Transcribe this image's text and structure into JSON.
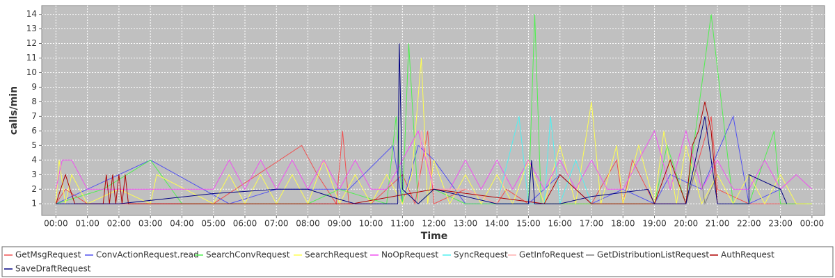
{
  "chart_data": {
    "type": "line",
    "x_label": "Time",
    "y_label": "calls/min",
    "xlim": [
      -0.45,
      24.4
    ],
    "ylim": [
      0.2,
      14.6
    ],
    "xticks": [
      {
        "value": 0,
        "label": "00:00"
      },
      {
        "value": 1,
        "label": "01:00"
      },
      {
        "value": 2,
        "label": "02:00"
      },
      {
        "value": 3,
        "label": "03:00"
      },
      {
        "value": 4,
        "label": "04:00"
      },
      {
        "value": 5,
        "label": "05:00"
      },
      {
        "value": 6,
        "label": "06:00"
      },
      {
        "value": 7,
        "label": "07:00"
      },
      {
        "value": 8,
        "label": "08:00"
      },
      {
        "value": 9,
        "label": "09:00"
      },
      {
        "value": 10,
        "label": "10:00"
      },
      {
        "value": 11,
        "label": "11:00"
      },
      {
        "value": 12,
        "label": "12:00"
      },
      {
        "value": 13,
        "label": "13:00"
      },
      {
        "value": 14,
        "label": "14:00"
      },
      {
        "value": 15,
        "label": "15:00"
      },
      {
        "value": 16,
        "label": "16:00"
      },
      {
        "value": 17,
        "label": "17:00"
      },
      {
        "value": 18,
        "label": "18:00"
      },
      {
        "value": 19,
        "label": "19:00"
      },
      {
        "value": 20,
        "label": "20:00"
      },
      {
        "value": 21,
        "label": "21:00"
      },
      {
        "value": 22,
        "label": "22:00"
      },
      {
        "value": 23,
        "label": "23:00"
      },
      {
        "value": 24,
        "label": "00:00"
      }
    ],
    "yticks": [
      1,
      2,
      3,
      4,
      5,
      6,
      7,
      8,
      9,
      10,
      11,
      12,
      13,
      14
    ],
    "grid": true,
    "legend": "bottom",
    "series": [
      {
        "name": "GetMsgRequest",
        "color": "#f05050",
        "x": [
          0,
          0.3,
          1,
          2,
          3,
          5,
          7.8,
          8.3,
          8.9,
          9.1,
          9.3,
          9.6,
          10,
          11,
          11.4,
          11.8,
          12,
          13,
          14,
          14.3,
          15,
          16,
          17,
          17.8,
          18,
          18.3,
          19,
          20,
          20.8,
          21,
          22,
          23,
          23.8
        ],
        "values": [
          1,
          2,
          1,
          1,
          1,
          1,
          5,
          3,
          1,
          6,
          1,
          1,
          1,
          3,
          1,
          6,
          1,
          2,
          1,
          2,
          1,
          1,
          1,
          4,
          1,
          4,
          1,
          1,
          7,
          2,
          1,
          1,
          1
        ]
      },
      {
        "name": "ConvActionRequest.read",
        "color": "#5050f0",
        "x": [
          0,
          3,
          5.5,
          7,
          9.3,
          10.7,
          11,
          11.5,
          12,
          13,
          14,
          15,
          16,
          17,
          18,
          19,
          19.5,
          20.5,
          21.5,
          22,
          23
        ],
        "values": [
          1,
          4,
          1,
          2,
          2,
          5,
          1,
          5,
          4,
          1,
          1,
          1,
          3,
          1,
          2,
          1,
          3,
          2,
          7,
          1,
          2
        ]
      },
      {
        "name": "SearchConvRequest",
        "color": "#50f050",
        "x": [
          0,
          1.5,
          3,
          4,
          8,
          9,
          10.5,
          10.8,
          11,
          11.2,
          11.5,
          12,
          13,
          14,
          15,
          15.2,
          15.4,
          16,
          17,
          18,
          19,
          19.4,
          20,
          20.8,
          21.5,
          22,
          22.8,
          23,
          24
        ],
        "values": [
          1,
          2,
          4,
          1,
          1,
          2,
          1,
          7,
          1,
          12,
          1,
          2,
          1,
          1,
          1,
          14,
          1,
          1,
          1,
          1,
          1,
          5,
          1,
          14,
          1,
          1,
          6,
          1,
          1
        ]
      },
      {
        "name": "SearchRequest",
        "color": "#ffff50",
        "x": [
          0,
          0.1,
          0.3,
          0.5,
          1,
          2,
          3,
          3.2,
          5,
          5.5,
          6,
          6.5,
          7,
          7.5,
          8,
          8.5,
          9,
          9.5,
          10,
          10.5,
          11,
          11.3,
          11.6,
          11.8,
          12,
          12.5,
          13,
          13.5,
          14,
          14.5,
          15,
          15.5,
          16,
          16.5,
          17,
          17.3,
          17.8,
          18,
          18.5,
          19,
          19.3,
          19.7,
          20,
          20.5,
          21,
          21.5,
          22,
          22.5,
          23,
          23.5,
          24
        ],
        "values": [
          1,
          4,
          1,
          3,
          1,
          2,
          1,
          3,
          1,
          3,
          1,
          3,
          1,
          3,
          1,
          4,
          1,
          3,
          1,
          3,
          1,
          3,
          11,
          1,
          4,
          1,
          3,
          1,
          3,
          1,
          4,
          1,
          5,
          1,
          8,
          1,
          5,
          1,
          5,
          1,
          6,
          1,
          5,
          1,
          3,
          1,
          3,
          1,
          3,
          1,
          1
        ]
      },
      {
        "name": "NoOpRequest",
        "color": "#f050f0",
        "x": [
          0,
          0.2,
          0.5,
          1,
          2,
          3,
          4,
          5,
          5.5,
          6,
          6.5,
          7,
          7.5,
          8,
          8.5,
          9,
          9.5,
          10,
          10.5,
          11,
          11.5,
          12,
          12.5,
          13,
          13.5,
          14,
          14.5,
          15,
          15.5,
          16,
          16.5,
          17,
          17.5,
          18,
          18.5,
          19,
          19.5,
          20,
          20.5,
          21,
          21.5,
          22,
          22.5,
          23,
          23.5,
          24
        ],
        "values": [
          2,
          4,
          4,
          2,
          2,
          2,
          2,
          2,
          4,
          2,
          4,
          2,
          4,
          2,
          4,
          2,
          4,
          2,
          2,
          4,
          6,
          2,
          2,
          4,
          2,
          4,
          2,
          4,
          2,
          4,
          2,
          4,
          2,
          2,
          4,
          6,
          2,
          6,
          2,
          4,
          2,
          2,
          4,
          2,
          3,
          2
        ]
      },
      {
        "name": "SyncRequest",
        "color": "#50f0f0",
        "x": [
          14,
          14.7,
          15,
          15.5,
          15.7,
          16,
          16.5,
          17
        ],
        "values": [
          1,
          7,
          1,
          1,
          7,
          1,
          4,
          1
        ]
      },
      {
        "name": "GetInfoRequest",
        "color": "#ffafaf",
        "x": [
          11.5,
          11.6,
          12,
          13,
          14,
          14.3
        ],
        "values": [
          1,
          6,
          2,
          2,
          1,
          3
        ]
      },
      {
        "name": "GetDistributionListRequest",
        "color": "#808080",
        "x": [
          20,
          20.4,
          20.6,
          21
        ],
        "values": [
          1,
          4,
          1,
          3
        ]
      },
      {
        "name": "AuthRequest",
        "color": "#b00000",
        "x": [
          0,
          0.3,
          0.6,
          1.5,
          1.6,
          1.7,
          1.8,
          1.9,
          2,
          2.1,
          2.2,
          2.3,
          2.4,
          9.4,
          12,
          15.5,
          16,
          17,
          19,
          19.5,
          20,
          20.2,
          20.4,
          20.6,
          20.8,
          21
        ],
        "values": [
          1,
          3,
          1,
          1,
          3,
          1,
          3,
          1,
          3,
          1,
          3,
          1,
          1,
          1,
          2,
          1,
          3,
          1,
          1,
          4,
          1,
          5,
          6,
          8,
          6,
          1
        ]
      },
      {
        "name": "SaveDraftRequest",
        "color": "#000080",
        "x": [
          0,
          2,
          5,
          7,
          8,
          9,
          9.5,
          10,
          10.85,
          10.9,
          11,
          11.5,
          12,
          13,
          14,
          15,
          15.1,
          15.2,
          16,
          17,
          18.8,
          19,
          20,
          20.6,
          21,
          22,
          22,
          23,
          23.2
        ],
        "values": [
          1,
          1,
          1.7,
          2,
          2,
          1.3,
          1,
          1,
          1,
          12,
          2,
          1,
          2,
          1.5,
          1,
          1,
          4,
          1,
          1,
          1.5,
          2,
          1,
          1,
          7,
          1,
          1,
          3,
          2,
          1
        ]
      }
    ]
  }
}
